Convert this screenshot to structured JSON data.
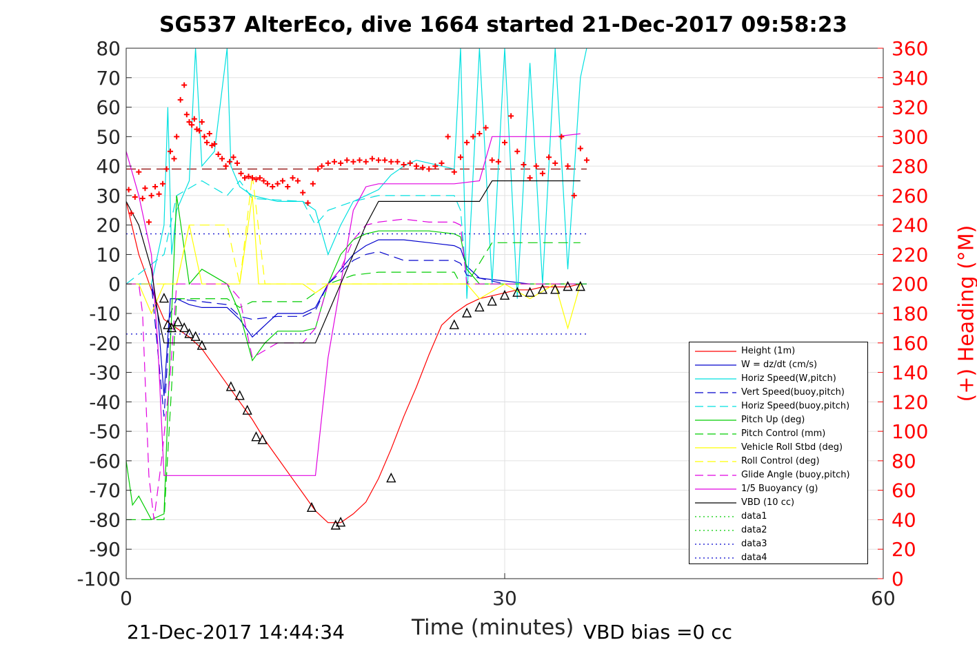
{
  "title": "SG537 AlterEco, dive 1664 started 21-Dec-2017 09:58:23",
  "footer_left": "21-Dec-2017 14:44:34",
  "footer_right": "VBD bias =0 cc",
  "chart_data": {
    "type": "line",
    "xlabel": "Time (minutes)",
    "ylabel": "",
    "y2label": "(+) Heading (°M)",
    "xlim": [
      0,
      60
    ],
    "ylim": [
      -100,
      80
    ],
    "y2lim": [
      0,
      360
    ],
    "xticks": [
      0,
      30,
      60
    ],
    "yticks": [
      -100,
      -90,
      -80,
      -70,
      -60,
      -50,
      -40,
      -30,
      -20,
      -10,
      0,
      10,
      20,
      30,
      40,
      50,
      60,
      70,
      80
    ],
    "y2ticks": [
      0,
      20,
      40,
      60,
      80,
      100,
      120,
      140,
      160,
      180,
      200,
      220,
      240,
      260,
      280,
      300,
      320,
      340,
      360
    ],
    "grid": true,
    "legend_position": "bottom-right",
    "colors": {
      "axis": "#262626",
      "heading": "#ff0000",
      "grid": "#e0e0e0"
    },
    "series": [
      {
        "name": "Height (1m)",
        "color": "#ff0000",
        "style": "solid",
        "x": [
          0,
          1,
          2,
          3,
          4,
          5,
          6,
          7,
          8,
          9,
          10,
          11,
          12,
          13,
          14,
          15,
          16,
          17,
          18,
          19,
          20,
          21,
          22,
          23,
          24,
          25,
          26,
          27,
          28,
          29,
          30,
          31,
          32,
          33,
          34,
          35,
          36
        ],
        "y": [
          28,
          10,
          -2,
          -12,
          -15,
          -18,
          -22,
          -28,
          -34,
          -40,
          -46,
          -53,
          -59,
          -65,
          -71,
          -77,
          -81,
          -81,
          -78,
          -74,
          -66,
          -56,
          -45,
          -35,
          -24,
          -14,
          -10,
          -7,
          -5,
          -4,
          -3,
          -2,
          -2,
          -1,
          -1,
          -1,
          0
        ]
      },
      {
        "name": "W = dz/dt (cm/s)",
        "color": "#0000cc",
        "style": "solid",
        "x": [
          0,
          1,
          2,
          2.5,
          3,
          3.5,
          4,
          5,
          6,
          8,
          9,
          10,
          12,
          14,
          15,
          16,
          17,
          18,
          19,
          20,
          22,
          24,
          26,
          26.5,
          27,
          28,
          30,
          32,
          34,
          36,
          36.5
        ],
        "y": [
          0,
          0,
          0,
          -10,
          -38,
          -5,
          -5,
          -7,
          -8,
          -8,
          -12,
          -18,
          -10,
          -10,
          -8,
          0,
          5,
          10,
          13,
          15,
          15,
          14,
          13,
          12,
          6,
          2,
          1,
          0,
          0,
          0,
          0
        ]
      },
      {
        "name": "Horiz Speed(W,pitch)",
        "color": "#00e0e0",
        "style": "solid",
        "x": [
          0,
          2,
          3,
          3.3,
          3.6,
          4,
          5,
          5.5,
          6,
          7,
          8,
          8.3,
          9,
          10,
          11,
          12,
          14,
          15,
          16,
          17,
          18,
          19,
          20,
          21,
          22,
          23,
          24,
          25,
          26,
          26.5,
          27,
          28,
          29,
          30,
          31,
          32,
          33,
          34,
          35,
          36,
          36.5
        ],
        "y": [
          0,
          0,
          20,
          60,
          10,
          25,
          35,
          80,
          40,
          45,
          80,
          40,
          33,
          30,
          29,
          28,
          28,
          25,
          10,
          20,
          28,
          30,
          32,
          37,
          40,
          42,
          41,
          40,
          39,
          80,
          -5,
          80,
          0,
          80,
          -5,
          75,
          0,
          80,
          5,
          70,
          80
        ]
      },
      {
        "name": "Vert Speed(buoy,pitch)",
        "color": "#0000cc",
        "style": "dashed",
        "x": [
          0,
          1,
          2,
          3,
          3.5,
          4,
          6,
          8,
          9,
          10,
          12,
          14,
          15,
          16,
          17,
          18,
          19,
          20,
          22,
          24,
          26,
          26.5,
          27,
          30,
          36
        ],
        "y": [
          0,
          0,
          0,
          -45,
          -10,
          -5,
          -6,
          -7,
          -11,
          -12,
          -11,
          -11,
          -9,
          0,
          4,
          8,
          10,
          11,
          8,
          8,
          8,
          7,
          3,
          0,
          0
        ]
      },
      {
        "name": "Horiz Speed(buoy,pitch)",
        "color": "#00e0e0",
        "style": "dashed",
        "x": [
          0,
          3,
          4,
          6,
          8,
          9,
          10,
          14,
          15,
          16,
          18,
          20,
          26,
          26.5,
          27,
          36
        ],
        "y": [
          0,
          10,
          30,
          35,
          30,
          35,
          29,
          28,
          20,
          25,
          28,
          30,
          30,
          25,
          0,
          0
        ]
      },
      {
        "name": "Pitch Up (deg)",
        "color": "#00cc00",
        "style": "solid",
        "x": [
          0,
          0.5,
          1,
          2,
          3,
          3.5,
          4,
          5,
          6,
          8,
          9,
          10,
          11,
          12,
          14,
          15,
          16,
          17,
          18,
          19,
          20,
          22,
          24,
          26,
          26.5,
          27,
          28,
          30,
          32,
          34,
          36,
          36.5
        ],
        "y": [
          -60,
          -75,
          -72,
          -80,
          -78,
          -20,
          30,
          0,
          5,
          0,
          -10,
          -26,
          -20,
          -16,
          -16,
          -15,
          0,
          10,
          15,
          17,
          18,
          18,
          18,
          17,
          16,
          5,
          0,
          0,
          0,
          0,
          0,
          0
        ]
      },
      {
        "name": "Pitch Control (mm)",
        "color": "#00cc00",
        "style": "dashed",
        "x": [
          0,
          1,
          2,
          3,
          4,
          8,
          9,
          10,
          14,
          15,
          16,
          18,
          20,
          26,
          26.5,
          27,
          29,
          36
        ],
        "y": [
          -80,
          -80,
          -80,
          -80,
          -5,
          -5,
          -8,
          -6,
          -6,
          -3,
          0,
          3,
          4,
          4,
          0,
          0,
          14,
          14
        ]
      },
      {
        "name": "Vehicle Roll Stbd (deg)",
        "color": "#ffff00",
        "style": "solid",
        "x": [
          0,
          1,
          2,
          3,
          4,
          5,
          6,
          8,
          9,
          10,
          10.5,
          11,
          14,
          15,
          16,
          20,
          26,
          27,
          28,
          30,
          32,
          34,
          35,
          36
        ],
        "y": [
          0,
          0,
          -10,
          0,
          0,
          20,
          0,
          0,
          0,
          30,
          0,
          0,
          0,
          -3,
          0,
          0,
          0,
          0,
          -5,
          0,
          -5,
          0,
          -15,
          0
        ]
      },
      {
        "name": "Roll Control (deg)",
        "color": "#ffff00",
        "style": "dashed",
        "x": [
          0,
          4,
          5,
          6,
          8,
          9,
          10,
          11,
          14,
          16,
          26,
          27,
          36
        ],
        "y": [
          0,
          0,
          20,
          20,
          20,
          0,
          37,
          0,
          0,
          0,
          0,
          0,
          0
        ]
      },
      {
        "name": "Glide Angle (buoy,pitch)",
        "color": "#e000e0",
        "style": "dashed",
        "x": [
          0,
          1,
          1.3,
          1.8,
          2.2,
          2.8,
          3.5,
          4,
          6,
          8,
          9,
          10,
          12,
          14,
          15,
          16,
          17,
          18,
          19,
          20,
          22,
          24,
          26,
          26.5,
          27,
          30,
          36
        ],
        "y": [
          0,
          0,
          -10,
          -65,
          -80,
          -60,
          -30,
          0,
          0,
          0,
          -5,
          -25,
          -20,
          -20,
          -15,
          0,
          5,
          15,
          20,
          21,
          22,
          21,
          21,
          20,
          0,
          0,
          0
        ]
      },
      {
        "name": "1/5 Buoyancy (g)",
        "color": "#e000e0",
        "style": "solid",
        "x": [
          0,
          1,
          2,
          2.5,
          3,
          8,
          14,
          15,
          16,
          17,
          18,
          19,
          20,
          22,
          24,
          26,
          28,
          29,
          30,
          32,
          34,
          36
        ],
        "y": [
          45,
          30,
          10,
          -20,
          -65,
          -65,
          -65,
          -65,
          -25,
          0,
          25,
          33,
          34,
          34,
          34,
          34,
          35,
          50,
          50,
          50,
          50,
          51
        ]
      },
      {
        "name": "VBD (10 cc)",
        "color": "#000000",
        "style": "solid",
        "x": [
          0,
          1,
          2,
          2.5,
          3,
          8,
          14,
          15,
          16,
          17,
          18,
          19,
          20,
          22,
          24,
          26,
          28,
          29,
          30,
          32,
          34,
          36
        ],
        "y": [
          28,
          20,
          5,
          -10,
          -20,
          -20,
          -20,
          -20,
          -10,
          0,
          10,
          20,
          28,
          28,
          28,
          28,
          28,
          35,
          35,
          35,
          35,
          35
        ]
      },
      {
        "name": "data1",
        "color": "#00cc00",
        "style": "dotted",
        "x": [],
        "y": []
      },
      {
        "name": "data2",
        "color": "#00cc00",
        "style": "dotted",
        "x": [],
        "y": []
      },
      {
        "name": "data3",
        "color": "#0000cc",
        "style": "dotted",
        "x": [
          0,
          36.5
        ],
        "y": [
          17,
          17
        ]
      },
      {
        "name": "data4",
        "color": "#0000cc",
        "style": "dotted",
        "x": [
          0,
          36.5
        ],
        "y": [
          -17,
          -17
        ]
      }
    ],
    "reference_lines": [
      {
        "color": "#8b0000",
        "style": "dashed",
        "axis": "y2",
        "value": 278,
        "x": [
          0,
          36.5
        ]
      }
    ],
    "heading_points": {
      "axis": "y2",
      "color": "#ff0000",
      "marker": "+",
      "x": [
        0.2,
        0.4,
        0.7,
        1.0,
        1.3,
        1.5,
        1.8,
        2.0,
        2.3,
        2.6,
        2.9,
        3.2,
        3.5,
        3.8,
        4.0,
        4.3,
        4.6,
        4.8,
        5.0,
        5.2,
        5.4,
        5.6,
        5.8,
        6.0,
        6.2,
        6.4,
        6.6,
        6.8,
        7.0,
        7.3,
        7.6,
        7.9,
        8.2,
        8.5,
        8.8,
        9.1,
        9.4,
        9.7,
        10.0,
        10.3,
        10.6,
        10.9,
        11.2,
        11.6,
        12.0,
        12.4,
        12.8,
        13.2,
        13.6,
        14.0,
        14.4,
        14.8,
        15.2,
        15.5,
        16.0,
        16.5,
        17.0,
        17.5,
        18.0,
        18.5,
        19.0,
        19.5,
        20.0,
        20.5,
        21.0,
        21.5,
        22.0,
        22.5,
        23.0,
        23.5,
        24.0,
        24.5,
        25.0,
        25.5,
        26.0,
        26.5,
        27.0,
        27.5,
        28.0,
        28.5,
        29.0,
        29.5,
        30.0,
        30.5,
        31.0,
        31.5,
        32.0,
        32.5,
        33.0,
        33.5,
        34.0,
        34.5,
        35.0,
        35.5,
        36.0,
        36.5
      ],
      "y": [
        264,
        248,
        259,
        276,
        258,
        265,
        242,
        260,
        266,
        261,
        268,
        278,
        290,
        285,
        300,
        325,
        335,
        315,
        310,
        308,
        312,
        305,
        304,
        310,
        300,
        296,
        302,
        294,
        295,
        288,
        285,
        280,
        283,
        286,
        282,
        275,
        272,
        273,
        272,
        271,
        272,
        270,
        268,
        266,
        268,
        270,
        266,
        272,
        270,
        262,
        255,
        268,
        278,
        280,
        282,
        283,
        282,
        284,
        283,
        284,
        283,
        285,
        284,
        284,
        283,
        283,
        281,
        282,
        280,
        279,
        278,
        280,
        282,
        300,
        276,
        286,
        296,
        300,
        302,
        306,
        284,
        283,
        296,
        314,
        290,
        281,
        272,
        280,
        275,
        286,
        282,
        300,
        280,
        260,
        292,
        284
      ]
    },
    "triangle_markers": {
      "x": [
        3,
        3.3,
        3.6,
        4.1,
        4.6,
        5.0,
        5.5,
        6.0,
        8.3,
        9.0,
        9.6,
        10.3,
        10.8,
        14.7,
        16.6,
        17.0,
        21.0,
        26.0,
        27.0,
        28.0,
        29.0,
        30.0,
        31.0,
        32.0,
        33.0,
        34.0,
        35.0,
        36.0
      ],
      "y": [
        -5,
        -14,
        -15,
        -13,
        -15,
        -17,
        -18,
        -21,
        -35,
        -38,
        -43,
        -52,
        -53,
        -76,
        -82,
        -81,
        -66,
        -14,
        -10,
        -8,
        -6,
        -4,
        -3,
        -3,
        -2,
        -2,
        -1,
        -1
      ]
    }
  }
}
